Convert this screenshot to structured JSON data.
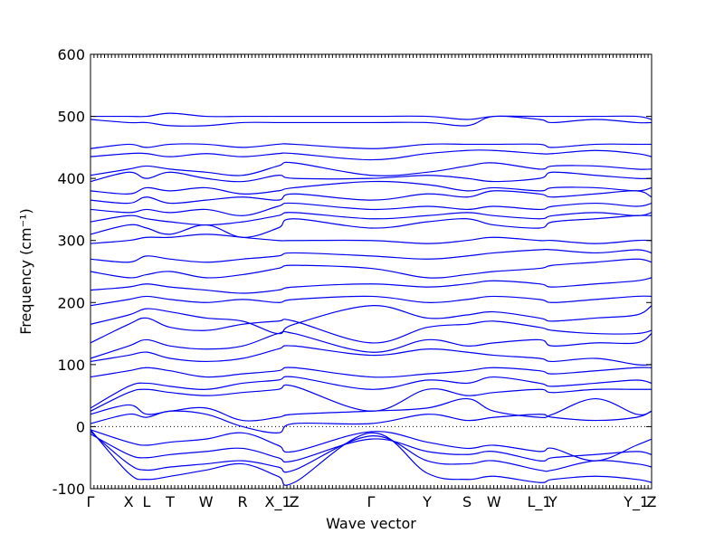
{
  "chart_data": {
    "type": "line",
    "title": "",
    "xlabel": "Wave vector",
    "ylabel": "Frequency (cm⁻¹)",
    "ylim": [
      -100,
      600
    ],
    "yticks": [
      -100,
      0,
      100,
      200,
      300,
      400,
      500,
      600
    ],
    "xlim": [
      0,
      1
    ],
    "kpoints": [
      {
        "label": "Γ",
        "x": 0.0
      },
      {
        "label": "X",
        "x": 0.068
      },
      {
        "label": "L",
        "x": 0.1
      },
      {
        "label": "T",
        "x": 0.142
      },
      {
        "label": "W",
        "x": 0.206
      },
      {
        "label": "R",
        "x": 0.271
      },
      {
        "label": "X_1",
        "x": 0.334
      },
      {
        "label": "Z",
        "x": 0.363
      },
      {
        "label": "Γ",
        "x": 0.5
      },
      {
        "label": "Y",
        "x": 0.6
      },
      {
        "label": "S",
        "x": 0.671
      },
      {
        "label": "W",
        "x": 0.719
      },
      {
        "label": "L_1",
        "x": 0.8
      },
      {
        "label": "Y",
        "x": 0.824
      },
      {
        "label": "Y_1",
        "x": 0.973
      },
      {
        "label": "Z",
        "x": 1.0
      }
    ],
    "x": [
      0.0,
      0.068,
      0.1,
      0.142,
      0.206,
      0.271,
      0.334,
      0.363,
      0.5,
      0.6,
      0.671,
      0.719,
      0.8,
      0.824,
      0.9,
      0.973,
      1.0
    ],
    "series": [
      {
        "values": [
          -5,
          -75,
          -85,
          -80,
          -70,
          -60,
          -80,
          -90,
          -10,
          -75,
          -85,
          -80,
          -90,
          -85,
          -80,
          -85,
          -90
        ]
      },
      {
        "values": [
          -8,
          -60,
          -70,
          -65,
          -60,
          -55,
          -65,
          -70,
          -15,
          -55,
          -60,
          -55,
          -70,
          -70,
          -55,
          -60,
          -65
        ]
      },
      {
        "values": [
          -12,
          -45,
          -50,
          -45,
          -40,
          -35,
          -50,
          -55,
          -20,
          -40,
          -45,
          -40,
          -55,
          -50,
          -45,
          -40,
          -45
        ]
      },
      {
        "values": [
          -5,
          -25,
          -30,
          -25,
          -20,
          -10,
          -30,
          -40,
          -8,
          -25,
          -35,
          -30,
          -40,
          -35,
          -55,
          -30,
          -20
        ]
      },
      {
        "values": [
          5,
          20,
          15,
          25,
          20,
          0,
          -10,
          5,
          5,
          20,
          10,
          15,
          20,
          15,
          10,
          15,
          25
        ]
      },
      {
        "values": [
          20,
          35,
          20,
          25,
          30,
          10,
          15,
          20,
          25,
          30,
          45,
          25,
          15,
          20,
          45,
          20,
          25
        ]
      },
      {
        "values": [
          25,
          55,
          60,
          55,
          50,
          55,
          60,
          65,
          25,
          60,
          50,
          55,
          60,
          55,
          60,
          60,
          60
        ]
      },
      {
        "values": [
          30,
          65,
          70,
          65,
          60,
          70,
          75,
          80,
          60,
          75,
          70,
          80,
          70,
          65,
          70,
          75,
          70
        ]
      },
      {
        "values": [
          80,
          90,
          95,
          90,
          80,
          85,
          90,
          95,
          80,
          85,
          90,
          95,
          90,
          85,
          90,
          95,
          95
        ]
      },
      {
        "values": [
          105,
          115,
          120,
          110,
          105,
          110,
          125,
          130,
          115,
          125,
          120,
          115,
          110,
          105,
          110,
          100,
          100
        ]
      },
      {
        "values": [
          110,
          130,
          140,
          130,
          125,
          130,
          150,
          150,
          120,
          140,
          130,
          135,
          140,
          130,
          135,
          135,
          150
        ]
      },
      {
        "values": [
          135,
          165,
          175,
          160,
          155,
          165,
          170,
          170,
          135,
          160,
          165,
          170,
          160,
          155,
          150,
          150,
          155
        ]
      },
      {
        "values": [
          165,
          180,
          190,
          185,
          175,
          170,
          150,
          165,
          195,
          175,
          180,
          185,
          175,
          170,
          175,
          180,
          195
        ]
      },
      {
        "values": [
          195,
          205,
          210,
          205,
          200,
          205,
          200,
          205,
          210,
          200,
          205,
          210,
          205,
          200,
          205,
          210,
          210
        ]
      },
      {
        "values": [
          220,
          225,
          230,
          225,
          220,
          215,
          220,
          225,
          230,
          225,
          230,
          235,
          230,
          225,
          230,
          235,
          240
        ]
      },
      {
        "values": [
          250,
          240,
          245,
          250,
          240,
          245,
          255,
          260,
          255,
          240,
          245,
          250,
          255,
          260,
          265,
          270,
          265
        ]
      },
      {
        "values": [
          270,
          265,
          275,
          270,
          265,
          270,
          275,
          280,
          275,
          270,
          275,
          280,
          285,
          285,
          280,
          285,
          280
        ]
      },
      {
        "values": [
          295,
          300,
          305,
          305,
          310,
          305,
          300,
          300,
          300,
          295,
          300,
          305,
          300,
          300,
          295,
          300,
          300
        ]
      },
      {
        "values": [
          310,
          325,
          320,
          310,
          325,
          305,
          320,
          335,
          320,
          330,
          335,
          325,
          320,
          330,
          335,
          340,
          340
        ]
      },
      {
        "values": [
          330,
          340,
          335,
          330,
          325,
          330,
          340,
          345,
          335,
          340,
          345,
          340,
          335,
          340,
          345,
          340,
          345
        ]
      },
      {
        "values": [
          350,
          345,
          350,
          345,
          350,
          340,
          355,
          360,
          350,
          355,
          350,
          355,
          350,
          355,
          360,
          355,
          360
        ]
      },
      {
        "values": [
          365,
          360,
          370,
          360,
          365,
          370,
          365,
          375,
          365,
          375,
          370,
          380,
          375,
          370,
          375,
          380,
          370
        ]
      },
      {
        "values": [
          380,
          375,
          385,
          380,
          385,
          375,
          380,
          385,
          395,
          390,
          380,
          385,
          380,
          385,
          385,
          380,
          385
        ]
      },
      {
        "values": [
          395,
          410,
          400,
          410,
          400,
          395,
          405,
          400,
          400,
          405,
          400,
          395,
          400,
          410,
          405,
          400,
          400
        ]
      },
      {
        "values": [
          405,
          415,
          420,
          415,
          410,
          405,
          420,
          425,
          405,
          410,
          420,
          425,
          415,
          420,
          420,
          415,
          415
        ]
      },
      {
        "values": [
          435,
          440,
          440,
          435,
          440,
          435,
          440,
          440,
          430,
          440,
          445,
          445,
          440,
          440,
          445,
          440,
          435
        ]
      },
      {
        "values": [
          448,
          455,
          450,
          455,
          455,
          450,
          455,
          455,
          448,
          455,
          455,
          455,
          455,
          450,
          455,
          455,
          455
        ]
      },
      {
        "values": [
          495,
          490,
          490,
          485,
          485,
          490,
          490,
          490,
          490,
          490,
          485,
          500,
          495,
          490,
          495,
          490,
          490
        ]
      },
      {
        "values": [
          500,
          500,
          500,
          505,
          500,
          500,
          500,
          500,
          500,
          500,
          495,
          500,
          500,
          500,
          500,
          500,
          495
        ]
      }
    ]
  }
}
